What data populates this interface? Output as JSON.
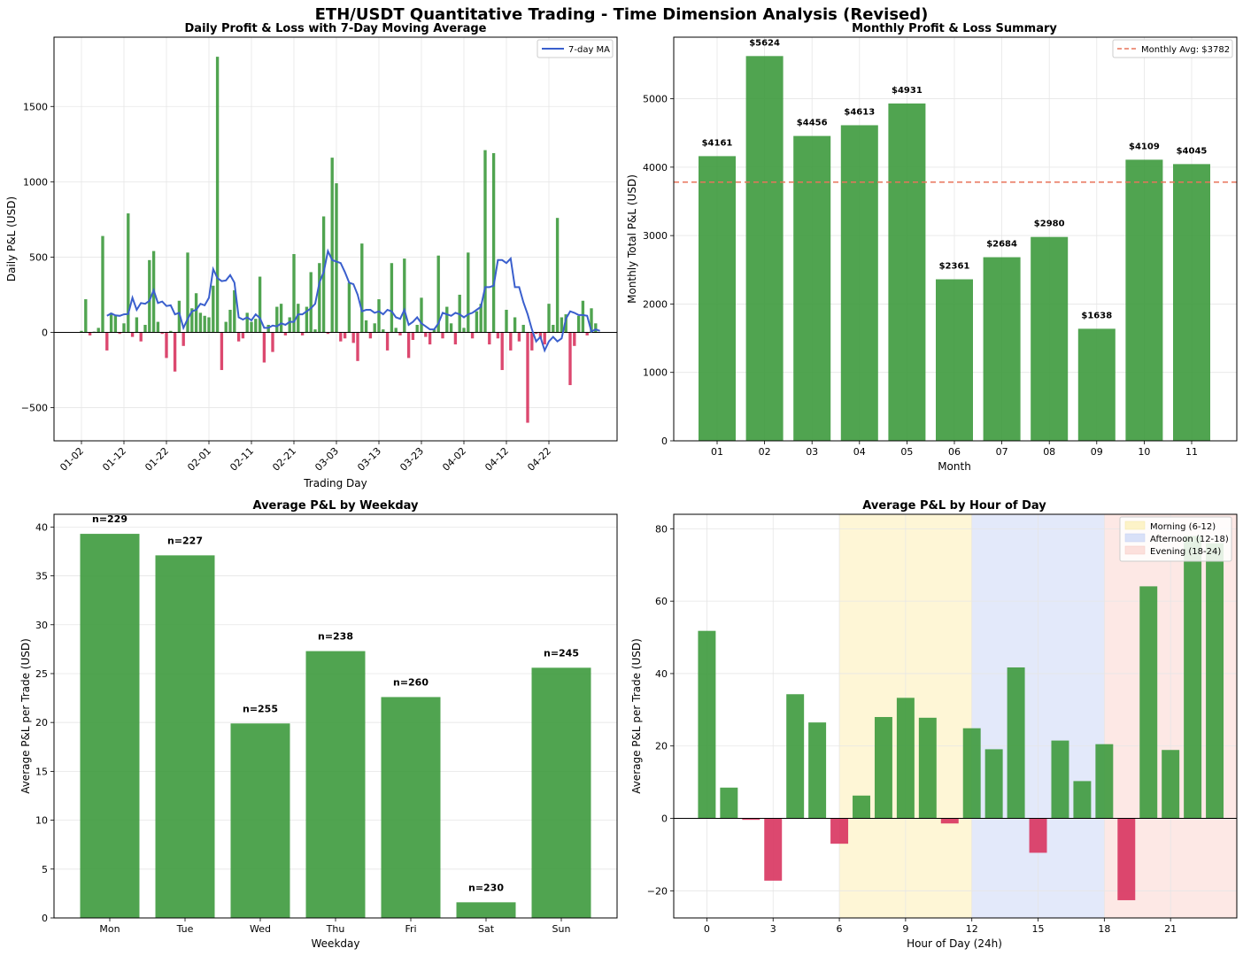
{
  "suptitle": "ETH/USDT Quantitative Trading - Time Dimension Analysis (Revised)",
  "colors": {
    "profit": "#3d9a3d",
    "loss": "#d8345f",
    "ma_line": "#3a5fcd",
    "avg_line": "#e8735a",
    "grid": "#e6e6e6",
    "morning": "#fdf3c8",
    "afternoon": "#d9e1f8",
    "evening": "#fce0dc"
  },
  "chart_data": [
    {
      "id": "daily",
      "type": "bar",
      "title": "Daily Profit & Loss with 7-Day Moving Average",
      "xlabel": "Trading Day",
      "ylabel": "Daily P&L (USD)",
      "ylim": [
        -720,
        1960
      ],
      "yticks": [
        -500,
        0,
        500,
        1000,
        1500
      ],
      "ytick_labels": [
        "−500",
        "0",
        "500",
        "1000",
        "1500"
      ],
      "xtick_positions": [
        0,
        10,
        20,
        30,
        40,
        50,
        60,
        70,
        80,
        90,
        100,
        110
      ],
      "xtick_labels": [
        "01-02",
        "01-12",
        "01-22",
        "02-01",
        "02-11",
        "02-21",
        "03-03",
        "03-13",
        "03-23",
        "04-02",
        "04-12",
        "04-22"
      ],
      "values": [
        10,
        220,
        -20,
        5,
        30,
        640,
        -120,
        130,
        110,
        -10,
        60,
        790,
        -30,
        100,
        -60,
        50,
        480,
        540,
        70,
        -10,
        -170,
        10,
        -260,
        210,
        -90,
        530,
        160,
        260,
        130,
        110,
        100,
        310,
        1830,
        -250,
        70,
        150,
        280,
        -60,
        -40,
        130,
        70,
        90,
        370,
        -200,
        50,
        -130,
        170,
        190,
        -20,
        100,
        520,
        190,
        -20,
        170,
        400,
        20,
        460,
        770,
        -10,
        1160,
        990,
        -60,
        -40,
        330,
        -70,
        -190,
        590,
        80,
        -40,
        60,
        220,
        20,
        -120,
        460,
        30,
        -20,
        490,
        -170,
        -50,
        50,
        230,
        -30,
        -80,
        20,
        510,
        -40,
        170,
        60,
        -80,
        250,
        30,
        530,
        -40,
        140,
        190,
        1210,
        -80,
        1190,
        -40,
        -250,
        150,
        -120,
        100,
        -60,
        50,
        -600,
        -120,
        -10,
        -40,
        -80,
        190,
        50,
        760,
        100,
        120,
        -350,
        -90,
        110,
        210,
        -20,
        160,
        60
      ],
      "ma_values": [
        null,
        null,
        null,
        null,
        null,
        null,
        110,
        126,
        113,
        110,
        120,
        122,
        230,
        150,
        195,
        190,
        210,
        280,
        195,
        205,
        175,
        180,
        120,
        130,
        30,
        90,
        140,
        150,
        190,
        180,
        230,
        420,
        360,
        340,
        345,
        380,
        330,
        100,
        85,
        100,
        80,
        120,
        95,
        30,
        30,
        45,
        40,
        60,
        50,
        70,
        70,
        120,
        120,
        140,
        160,
        190,
        330,
        400,
        540,
        480,
        470,
        460,
        400,
        330,
        320,
        250,
        140,
        150,
        150,
        130,
        140,
        120,
        150,
        140,
        100,
        90,
        150,
        50,
        70,
        100,
        60,
        40,
        20,
        20,
        60,
        130,
        120,
        110,
        130,
        120,
        100,
        120,
        130,
        150,
        170,
        300,
        300,
        310,
        480,
        480,
        460,
        490,
        300,
        300,
        200,
        120,
        20,
        -60,
        -30,
        -120,
        -60,
        -30,
        -60,
        -40,
        90,
        140,
        130,
        115,
        115,
        110,
        5,
        20,
        10
      ],
      "legend": "7-day MA"
    },
    {
      "id": "monthly",
      "type": "bar",
      "title": "Monthly Profit & Loss Summary",
      "xlabel": "Month",
      "ylabel": "Monthly Total P&L (USD)",
      "categories": [
        "01",
        "02",
        "03",
        "04",
        "05",
        "06",
        "07",
        "08",
        "09",
        "10",
        "11"
      ],
      "values": [
        4161,
        5624,
        4456,
        4613,
        4931,
        2361,
        2684,
        2980,
        1638,
        4109,
        4045
      ],
      "data_labels": [
        "$4161",
        "$5624",
        "$4456",
        "$4613",
        "$4931",
        "$2361",
        "$2684",
        "$2980",
        "$1638",
        "$4109",
        "$4045"
      ],
      "ylim": [
        0,
        5900
      ],
      "yticks": [
        0,
        1000,
        2000,
        3000,
        4000,
        5000
      ],
      "ytick_labels": [
        "0",
        "1000",
        "2000",
        "3000",
        "4000",
        "5000"
      ],
      "average": 3782,
      "legend": "Monthly Avg: $3782"
    },
    {
      "id": "weekday",
      "type": "bar",
      "title": "Average P&L by Weekday",
      "xlabel": "Weekday",
      "ylabel": "Average P&L per Trade (USD)",
      "categories": [
        "Mon",
        "Tue",
        "Wed",
        "Thu",
        "Fri",
        "Sat",
        "Sun"
      ],
      "values": [
        39.3,
        37.1,
        19.9,
        27.3,
        22.6,
        1.6,
        25.6
      ],
      "data_labels": [
        "n=229",
        "n=227",
        "n=255",
        "n=238",
        "n=260",
        "n=230",
        "n=245"
      ],
      "ylim": [
        0,
        41.3
      ],
      "yticks": [
        0,
        5,
        10,
        15,
        20,
        25,
        30,
        35,
        40
      ],
      "ytick_labels": [
        "0",
        "5",
        "10",
        "15",
        "20",
        "25",
        "30",
        "35",
        "40"
      ]
    },
    {
      "id": "hourly",
      "type": "bar",
      "title": "Average P&L by Hour of Day",
      "xlabel": "Hour of Day (24h)",
      "ylabel": "Average P&L per Trade (USD)",
      "hours": [
        0,
        1,
        2,
        3,
        4,
        5,
        6,
        7,
        8,
        9,
        10,
        11,
        12,
        13,
        14,
        15,
        16,
        17,
        18,
        19,
        20,
        21,
        22,
        23
      ],
      "values": [
        51.8,
        8.5,
        -0.4,
        -17.2,
        34.3,
        26.5,
        -7.0,
        6.3,
        28.0,
        33.3,
        27.8,
        -1.4,
        24.9,
        19.1,
        41.7,
        -9.5,
        21.5,
        10.3,
        20.5,
        -22.6,
        64.1,
        18.9,
        78,
        76
      ],
      "ylim": [
        -27.5,
        84
      ],
      "yticks": [
        -20,
        0,
        20,
        40,
        60,
        80
      ],
      "ytick_labels": [
        "−20",
        "0",
        "20",
        "40",
        "60",
        "80"
      ],
      "xticks": [
        0,
        3,
        6,
        9,
        12,
        15,
        18,
        21
      ],
      "xtick_labels": [
        "0",
        "3",
        "6",
        "9",
        "12",
        "15",
        "18",
        "21"
      ],
      "xlim": [
        -1.5,
        24
      ],
      "bands": [
        {
          "from": 6,
          "to": 12,
          "label": "Morning (6-12)"
        },
        {
          "from": 12,
          "to": 18,
          "label": "Afternoon (12-18)"
        },
        {
          "from": 18,
          "to": 24,
          "label": "Evening (18-24)"
        }
      ]
    }
  ]
}
